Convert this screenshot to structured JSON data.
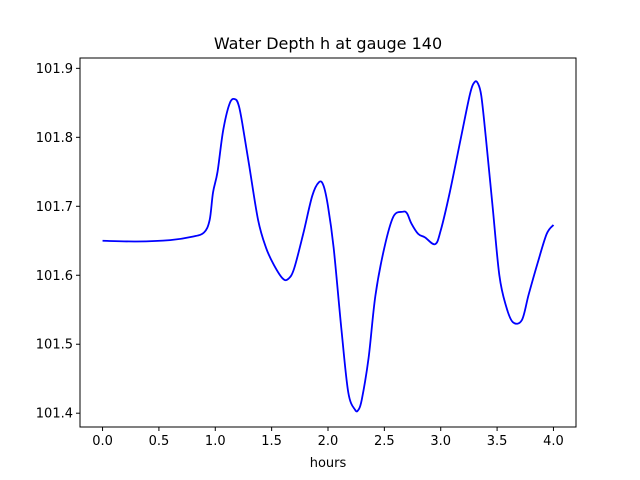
{
  "chart_data": {
    "type": "line",
    "title": "Water Depth h at gauge 140",
    "xlabel": "hours",
    "ylabel": "",
    "xlim": [
      -0.2,
      4.2
    ],
    "ylim": [
      101.38,
      101.915
    ],
    "xticks": [
      0.0,
      0.5,
      1.0,
      1.5,
      2.0,
      2.5,
      3.0,
      3.5,
      4.0
    ],
    "xtick_labels": [
      "0.0",
      "0.5",
      "1.0",
      "1.5",
      "2.0",
      "2.5",
      "3.0",
      "3.5",
      "4.0"
    ],
    "yticks": [
      101.4,
      101.5,
      101.6,
      101.7,
      101.8,
      101.9
    ],
    "ytick_labels": [
      "101.4",
      "101.5",
      "101.6",
      "101.7",
      "101.8",
      "101.9"
    ],
    "grid": false,
    "legend": false,
    "series": [
      {
        "color": "#0000ff",
        "x": [
          0.0,
          0.3,
          0.6,
          0.8,
          0.9,
          0.95,
          0.98,
          1.02,
          1.07,
          1.13,
          1.18,
          1.21,
          1.24,
          1.3,
          1.38,
          1.45,
          1.52,
          1.6,
          1.65,
          1.7,
          1.78,
          1.86,
          1.92,
          1.96,
          2.0,
          2.05,
          2.12,
          2.18,
          2.24,
          2.27,
          2.3,
          2.36,
          2.42,
          2.5,
          2.58,
          2.66,
          2.7,
          2.74,
          2.8,
          2.86,
          2.95,
          3.0,
          3.08,
          3.18,
          3.26,
          3.3,
          3.33,
          3.36,
          3.4,
          3.46,
          3.52,
          3.58,
          3.64,
          3.72,
          3.78,
          3.86,
          3.94,
          4.0
        ],
        "y": [
          101.65,
          101.649,
          101.651,
          101.656,
          101.662,
          101.68,
          101.72,
          101.75,
          101.81,
          101.85,
          101.855,
          101.845,
          101.82,
          101.76,
          101.68,
          101.64,
          101.615,
          101.595,
          101.595,
          101.61,
          101.66,
          101.715,
          101.735,
          101.73,
          101.7,
          101.64,
          101.52,
          101.43,
          101.405,
          101.405,
          101.42,
          101.48,
          101.57,
          101.64,
          101.685,
          101.692,
          101.69,
          101.675,
          101.66,
          101.655,
          101.645,
          101.665,
          101.72,
          101.8,
          101.863,
          101.88,
          101.878,
          101.86,
          101.8,
          101.7,
          101.6,
          101.555,
          101.532,
          101.535,
          101.572,
          101.618,
          101.66,
          101.673
        ]
      }
    ]
  }
}
